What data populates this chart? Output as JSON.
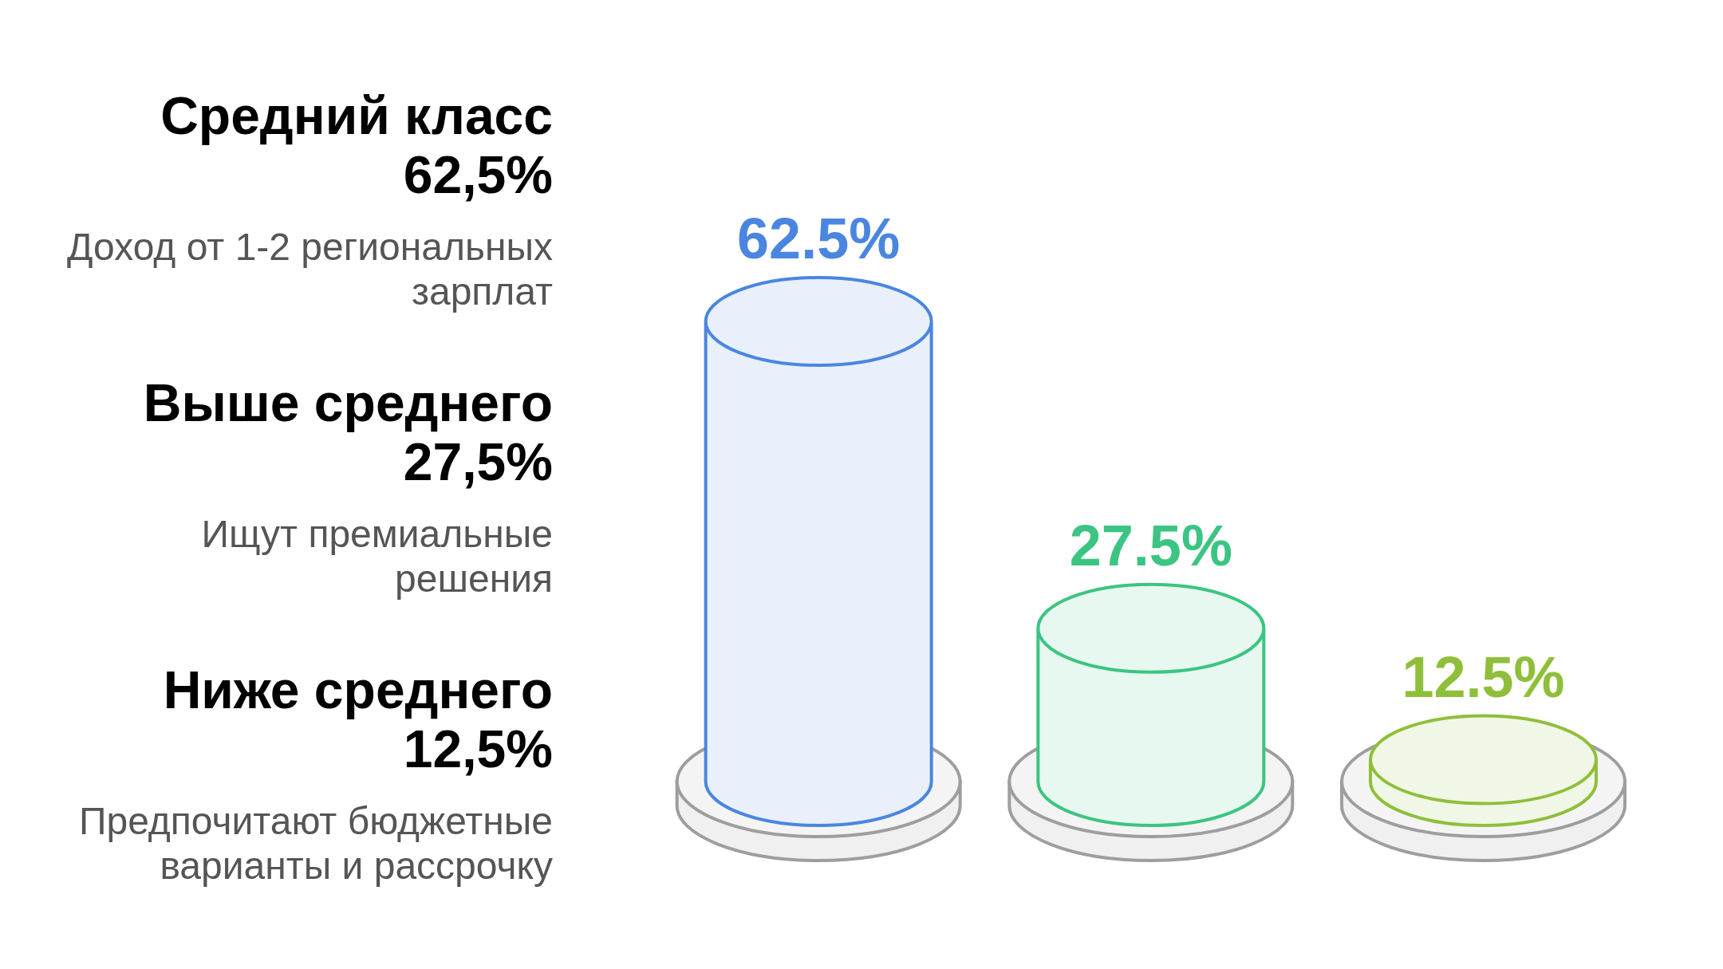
{
  "chart_data": {
    "type": "bar",
    "categories": [
      null,
      null,
      null
    ],
    "values": [
      62.5,
      27.5,
      12.5
    ],
    "colors": [
      "#4a86e0",
      "#3cc482",
      "#8fbf3a"
    ],
    "value_labels": [
      "62.5%",
      "27.5%",
      "12.5%"
    ],
    "annotations": [
      "Средний класс",
      "62,5%",
      "Доход от 1-2 региональных зарплат",
      "Выше среднего",
      "27,5%",
      "Ищут премиальные решения",
      "Ниже среднего",
      "12,5%",
      "Предпочитают бюджетные варианты и рассрочку"
    ]
  }
}
